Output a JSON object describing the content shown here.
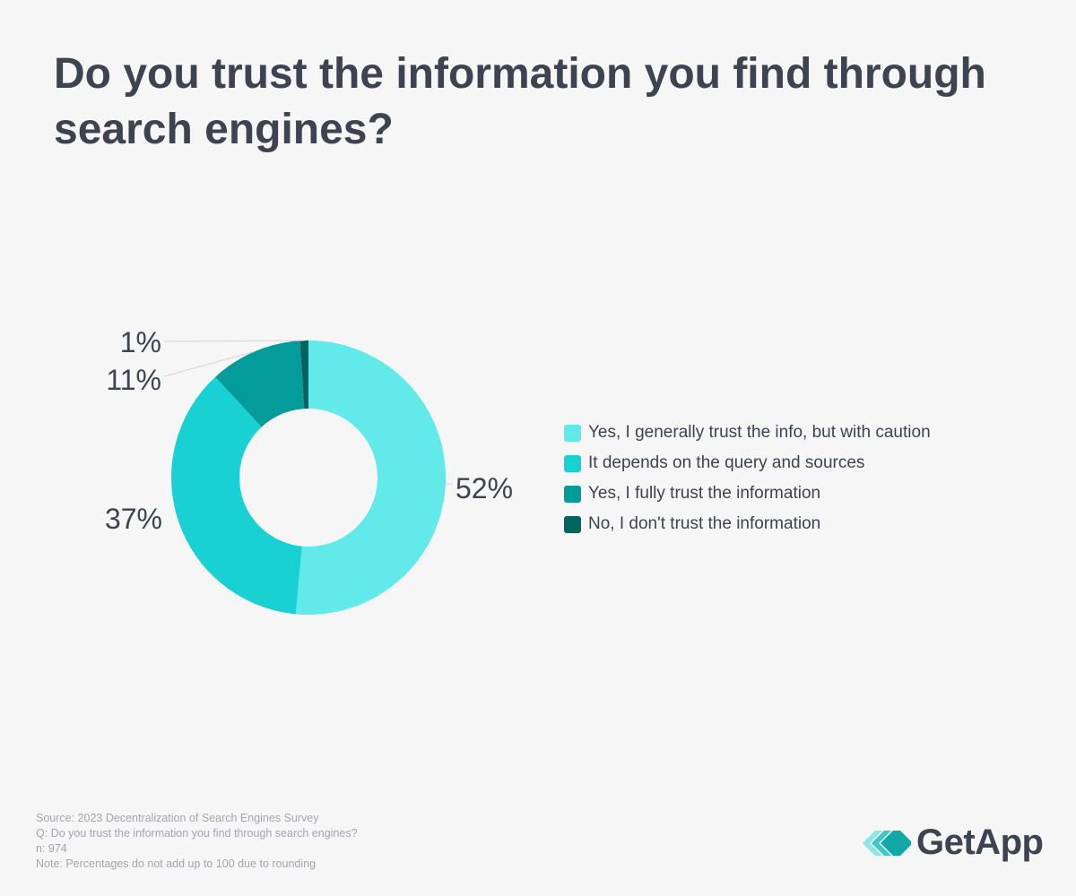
{
  "title": "Do you trust the information you find through search engines?",
  "chart_data": {
    "type": "pie",
    "variant": "donut",
    "title": "Do you trust the information you find through search engines?",
    "categories": [
      "Yes, I generally trust the info, but with caution",
      "It depends on the query and sources",
      "Yes, I fully trust the information",
      "No, I don't trust the information"
    ],
    "values": [
      52,
      37,
      11,
      1
    ],
    "value_labels": [
      "52%",
      "37%",
      "11%",
      "1%"
    ],
    "colors": [
      "#62e9e9",
      "#19d1d3",
      "#039c9a",
      "#03635e"
    ],
    "legend_position": "right"
  },
  "footnotes": {
    "source": "Source: 2023 Decentralization of Search Engines Survey",
    "question": "Q: Do you trust the information you find through search engines?",
    "n": "n: 974",
    "note": "Note: Percentages do not add up to 100 due to rounding"
  },
  "logo": {
    "text": "GetApp",
    "icon": "getapp-chevrons-icon",
    "colors": [
      "#8fe4e4",
      "#3cc8c8",
      "#12a8a8"
    ]
  }
}
